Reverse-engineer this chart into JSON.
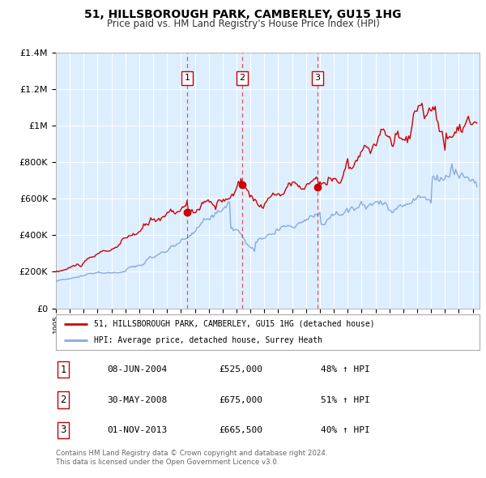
{
  "title": "51, HILLSBOROUGH PARK, CAMBERLEY, GU15 1HG",
  "subtitle": "Price paid vs. HM Land Registry's House Price Index (HPI)",
  "legend_line1": "51, HILLSBOROUGH PARK, CAMBERLEY, GU15 1HG (detached house)",
  "legend_line2": "HPI: Average price, detached house, Surrey Heath",
  "footer1": "Contains HM Land Registry data © Crown copyright and database right 2024.",
  "footer2": "This data is licensed under the Open Government Licence v3.0.",
  "sale_color": "#cc0000",
  "hpi_color": "#88aadd",
  "dashed_color": "#dd4444",
  "plot_bg_color": "#ddeeff",
  "grid_color": "#ffffff",
  "fig_bg_color": "#ffffff",
  "ylim": [
    0,
    1400000
  ],
  "yticks": [
    0,
    200000,
    400000,
    600000,
    800000,
    1000000,
    1200000,
    1400000
  ],
  "ytick_labels": [
    "£0",
    "£200K",
    "£400K",
    "£600K",
    "£800K",
    "£1M",
    "£1.2M",
    "£1.4M"
  ],
  "xmin": 1995,
  "xmax": 2025.5,
  "transactions": [
    {
      "num": 1,
      "date": 2004.44,
      "price": 525000,
      "x_line": 2004.44
    },
    {
      "num": 2,
      "date": 2008.41,
      "price": 675000,
      "x_line": 2008.41
    },
    {
      "num": 3,
      "date": 2013.83,
      "price": 665500,
      "x_line": 2013.83
    }
  ],
  "table_rows": [
    {
      "num": "1",
      "date": "08-JUN-2004",
      "price": "£525,000",
      "pct": "48% ↑ HPI"
    },
    {
      "num": "2",
      "date": "30-MAY-2008",
      "price": "£675,000",
      "pct": "51% ↑ HPI"
    },
    {
      "num": "3",
      "date": "01-NOV-2013",
      "price": "£665,500",
      "pct": "40% ↑ HPI"
    }
  ]
}
